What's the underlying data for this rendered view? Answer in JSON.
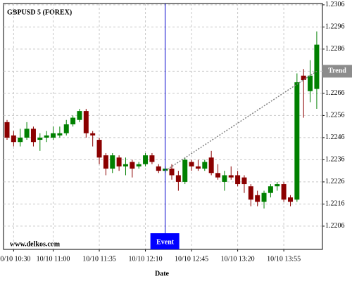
{
  "chart_data": {
    "type": "candlestick",
    "title": "GBPUSD 5 (FOREX)",
    "x_label": "Date",
    "watermark": "www.delkos.com",
    "categories": [
      null,
      "10/10 10:30",
      null,
      null,
      null,
      null,
      null,
      "10/10 11:00",
      null,
      null,
      null,
      null,
      null,
      null,
      "10/10 11:35",
      null,
      null,
      null,
      null,
      null,
      null,
      "10/10 12:10",
      null,
      null,
      null,
      null,
      null,
      null,
      "10/10 12:45",
      null,
      null,
      null,
      null,
      null,
      null,
      "10/10 13:20",
      null,
      null,
      null,
      null,
      null,
      null,
      "10/10 13:55",
      null,
      null,
      null,
      null,
      null
    ],
    "open": [
      1.2253,
      1.2247,
      1.2244,
      1.2246,
      1.225,
      1.2245,
      1.2246,
      1.2246,
      1.2247,
      1.2248,
      1.2252,
      1.2254,
      1.2258,
      1.2248,
      1.2245,
      1.2238,
      1.2232,
      1.2237,
      1.2233,
      1.2235,
      1.2233,
      1.2234,
      1.2238,
      1.2233,
      1.2231,
      1.2232,
      1.2229,
      1.2226,
      1.2235,
      1.2233,
      1.2232,
      1.2237,
      1.223,
      1.2226,
      1.2229,
      1.2229,
      1.2228,
      1.2224,
      1.222,
      1.2217,
      1.2221,
      1.2224,
      1.2225,
      1.2219,
      1.2218,
      1.2274,
      1.2267,
      1.2268
    ],
    "high": [
      1.2254,
      1.2249,
      1.225,
      1.2253,
      1.2251,
      1.2248,
      1.2249,
      1.2251,
      1.2251,
      1.2254,
      1.2256,
      1.2259,
      1.2259,
      1.2249,
      1.2246,
      1.2239,
      1.2239,
      1.2238,
      1.2237,
      1.2236,
      1.2235,
      1.2239,
      1.2239,
      1.2234,
      1.2233,
      1.2234,
      1.2231,
      1.2237,
      1.2236,
      1.2236,
      1.2236,
      1.224,
      1.2234,
      1.2231,
      1.2233,
      1.2231,
      1.2229,
      1.2225,
      1.2222,
      1.2222,
      1.2225,
      1.2226,
      1.2226,
      1.222,
      1.2275,
      1.2277,
      1.2281,
      1.2294
    ],
    "low": [
      1.2245,
      1.2242,
      1.2242,
      1.2245,
      1.2242,
      1.224,
      1.2244,
      1.2245,
      1.2246,
      1.2247,
      1.2251,
      1.2253,
      1.2246,
      1.2242,
      1.2234,
      1.2229,
      1.223,
      1.2231,
      1.2229,
      1.2228,
      1.2232,
      1.2233,
      1.2234,
      1.223,
      1.223,
      1.2227,
      1.2222,
      1.2225,
      1.2231,
      1.2231,
      1.2231,
      1.2229,
      1.2227,
      1.2222,
      1.2227,
      1.2224,
      1.2221,
      1.2215,
      1.2215,
      1.2214,
      1.2219,
      1.2222,
      1.2217,
      1.2215,
      1.2217,
      1.2255,
      1.2262,
      1.2259
    ],
    "close": [
      1.2246,
      1.2244,
      1.2246,
      1.225,
      1.2244,
      1.2246,
      1.2247,
      1.2248,
      1.2248,
      1.2252,
      1.2255,
      1.2258,
      1.2248,
      1.2247,
      1.2237,
      1.2232,
      1.2238,
      1.2233,
      1.2234,
      1.2232,
      1.2234,
      1.2238,
      1.2235,
      1.2231,
      1.2232,
      1.2229,
      1.2226,
      1.2236,
      1.2233,
      1.2232,
      1.2235,
      1.223,
      1.2228,
      1.2229,
      1.2228,
      1.2225,
      1.2225,
      1.2218,
      1.2217,
      1.2221,
      1.2224,
      1.2225,
      1.2218,
      1.2217,
      1.2271,
      1.2272,
      1.2274,
      1.2288
    ],
    "up_color": "#008000",
    "down_color": "#8b0000",
    "ylim": [
      1.21955,
      1.23066
    ],
    "yticks": [
      1.2306,
      1.2296,
      1.2286,
      1.2276,
      1.2266,
      1.2256,
      1.2246,
      1.2236,
      1.2226,
      1.2216,
      1.2206
    ],
    "grid": true,
    "event": {
      "label": "Event",
      "index": 24
    },
    "trend": {
      "label": "Trend",
      "points": [
        [
          24,
          1.2231
        ],
        [
          47,
          1.2276
        ]
      ]
    }
  }
}
